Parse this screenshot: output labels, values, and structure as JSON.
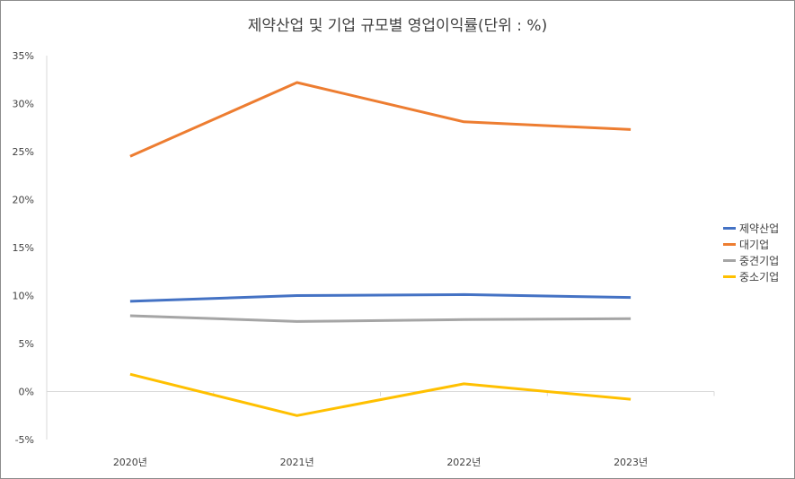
{
  "chart_data": {
    "type": "line",
    "title": "제약산업 및 기업 규모별 영업이익률(단위 : %)",
    "categories": [
      "2020년",
      "2021년",
      "2022년",
      "2023년"
    ],
    "ylim": [
      -5,
      35
    ],
    "yticks": [
      -5,
      0,
      5,
      10,
      15,
      20,
      25,
      30,
      35
    ],
    "ytick_labels": [
      "-5%",
      "0%",
      "5%",
      "10%",
      "15%",
      "20%",
      "25%",
      "30%",
      "35%"
    ],
    "grid": false,
    "legend_position": "right",
    "series": [
      {
        "name": "제약산업",
        "color": "#4472C4",
        "values": [
          9.4,
          10.0,
          10.1,
          9.8
        ]
      },
      {
        "name": "대기업",
        "color": "#ED7D31",
        "values": [
          24.5,
          32.2,
          28.1,
          27.3
        ]
      },
      {
        "name": "중견기업",
        "color": "#A5A5A5",
        "values": [
          7.9,
          7.3,
          7.5,
          7.6
        ]
      },
      {
        "name": "중소기업",
        "color": "#FFC000",
        "values": [
          1.8,
          -2.5,
          0.8,
          -0.8
        ]
      }
    ]
  }
}
